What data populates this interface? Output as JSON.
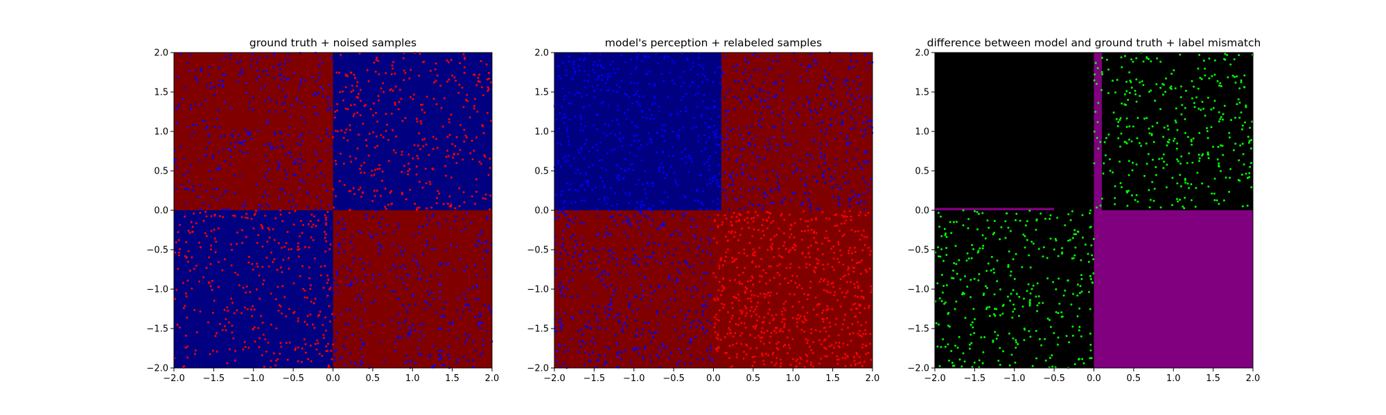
{
  "chart_data": [
    {
      "type": "scatter",
      "title": "ground truth + noised samples",
      "xlim": [
        -2.0,
        2.0
      ],
      "ylim": [
        -2.0,
        2.0
      ],
      "xticks": [
        "−2.0",
        "−1.5",
        "−1.0",
        "−0.5",
        "0.0",
        "0.5",
        "1.0",
        "1.5",
        "2.0"
      ],
      "yticks": [
        "−2.0",
        "−1.5",
        "−1.0",
        "−0.5",
        "0.0",
        "0.5",
        "1.0",
        "1.5",
        "2.0"
      ],
      "background_regions": [
        {
          "x": [
            -2.0,
            0.0
          ],
          "y": [
            0.0,
            2.0
          ],
          "color": "#800000"
        },
        {
          "x": [
            0.0,
            2.0
          ],
          "y": [
            0.0,
            2.0
          ],
          "color": "#000080"
        },
        {
          "x": [
            -2.0,
            0.0
          ],
          "y": [
            -2.0,
            0.0
          ],
          "color": "#000080"
        },
        {
          "x": [
            0.0,
            2.0
          ],
          "y": [
            -2.0,
            0.0
          ],
          "color": "#800000"
        }
      ],
      "series": [
        {
          "color": "#0000ff",
          "count": 700,
          "regions": [
            [
              -2.0,
              0.0,
              0.0,
              2.0
            ],
            [
              0.0,
              2.0,
              -2.0,
              0.0
            ]
          ]
        },
        {
          "color": "#ff0000",
          "count": 700,
          "regions": [
            [
              0.0,
              2.0,
              0.0,
              2.0
            ],
            [
              -2.0,
              0.0,
              -2.0,
              0.0
            ]
          ]
        }
      ]
    },
    {
      "type": "scatter",
      "title": "model's perception + relabeled samples",
      "xlim": [
        -2.0,
        2.0
      ],
      "ylim": [
        -2.0,
        2.0
      ],
      "xticks": [
        "−2.0",
        "−1.5",
        "−1.0",
        "−0.5",
        "0.0",
        "0.5",
        "1.0",
        "1.5",
        "2.0"
      ],
      "yticks": [
        "−2.0",
        "−1.5",
        "−1.0",
        "−0.5",
        "0.0",
        "0.5",
        "1.0",
        "1.5",
        "2.0"
      ],
      "background_regions": [
        {
          "x": [
            -2.0,
            0.1
          ],
          "y": [
            0.0,
            2.0
          ],
          "color": "#000080"
        },
        {
          "x": [
            0.1,
            2.0
          ],
          "y": [
            0.0,
            2.0
          ],
          "color": "#800000"
        },
        {
          "x": [
            -2.0,
            2.0
          ],
          "y": [
            -2.0,
            0.0
          ],
          "color": "#800000"
        }
      ],
      "series": [
        {
          "color": "#0000ff",
          "count": 1400,
          "regions": [
            [
              -2.0,
              0.0,
              0.0,
              2.0
            ],
            [
              0.0,
              2.0,
              0.0,
              2.0
            ],
            [
              -2.0,
              0.0,
              -2.0,
              0.0
            ]
          ]
        },
        {
          "color": "#ff0000",
          "count": 700,
          "regions": [
            [
              0.0,
              2.0,
              -2.0,
              0.0
            ]
          ]
        }
      ]
    },
    {
      "type": "scatter",
      "title": "difference between model and ground truth + label mismatch",
      "xlim": [
        -2.0,
        2.0
      ],
      "ylim": [
        -2.0,
        2.0
      ],
      "xticks": [
        "−2.0",
        "−1.5",
        "−1.0",
        "−0.5",
        "0.0",
        "0.5",
        "1.0",
        "1.5",
        "2.0"
      ],
      "yticks": [
        "−2.0",
        "−1.5",
        "−1.0",
        "−0.5",
        "0.0",
        "0.5",
        "1.0",
        "1.5",
        "2.0"
      ],
      "background_regions": [
        {
          "x": [
            -2.0,
            2.0
          ],
          "y": [
            -2.0,
            2.0
          ],
          "color": "#000000"
        },
        {
          "x": [
            0.0,
            2.0
          ],
          "y": [
            -2.0,
            0.0
          ],
          "color": "#800080"
        },
        {
          "x": [
            0.0,
            0.1
          ],
          "y": [
            0.0,
            2.0
          ],
          "color": "#800080"
        },
        {
          "x": [
            -2.0,
            -0.5
          ],
          "y": [
            0.0,
            0.03
          ],
          "color": "#800080"
        }
      ],
      "series": [
        {
          "color": "#00ff00",
          "count": 700,
          "regions": [
            [
              0.0,
              2.0,
              0.0,
              2.0
            ],
            [
              -2.0,
              0.0,
              -2.0,
              0.0
            ]
          ]
        }
      ]
    }
  ]
}
